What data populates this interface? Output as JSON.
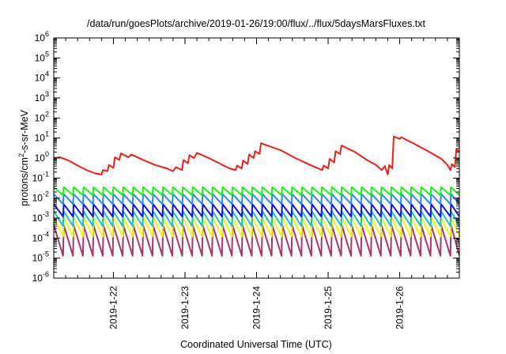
{
  "chart_data": {
    "type": "line",
    "title": "/data/run/goesPlots/archive/2019-01-26/19:00/flux/../flux/5daysMarsFluxes.txt",
    "xlabel": "Coordinated Universal Time (UTC)",
    "ylabel_parts": {
      "pre": "protons/cm",
      "sup": "2",
      "post": "-s-sr-MeV"
    },
    "x_range": [
      "2019-01-21T04:00",
      "2019-01-26T20:00"
    ],
    "x_ticks": [
      "2019-1-22",
      "2019-1-23",
      "2019-1-24",
      "2019-1-25",
      "2019-1-26"
    ],
    "y_scale": "log",
    "y_range": [
      1e-06,
      1000000.0
    ],
    "y_ticks": [
      {
        "base": "10",
        "exp": "-6"
      },
      {
        "base": "10",
        "exp": "-5"
      },
      {
        "base": "10",
        "exp": "-4"
      },
      {
        "base": "10",
        "exp": "-3"
      },
      {
        "base": "10",
        "exp": "-2"
      },
      {
        "base": "10",
        "exp": "-1"
      },
      {
        "base": "10",
        "exp": "0"
      },
      {
        "base": "10",
        "exp": "1"
      },
      {
        "base": "10",
        "exp": "2"
      },
      {
        "base": "10",
        "exp": "3"
      },
      {
        "base": "10",
        "exp": "4"
      },
      {
        "base": "10",
        "exp": "5"
      },
      {
        "base": "10",
        "exp": "6"
      }
    ],
    "grid": false,
    "legend": "none",
    "series": [
      {
        "color": "#e8201a",
        "kind": "trace",
        "points": [
          [
            "2019-01-21T04:00",
            1.0
          ],
          [
            "2019-01-21T06:00",
            1.1
          ],
          [
            "2019-01-21T09:00",
            0.75
          ],
          [
            "2019-01-21T12:00",
            0.42
          ],
          [
            "2019-01-21T15:00",
            0.25
          ],
          [
            "2019-01-21T18:00",
            0.17
          ],
          [
            "2019-01-21T20:00",
            0.15
          ],
          [
            "2019-01-21T20:30",
            0.25
          ],
          [
            "2019-01-21T22:00",
            0.22
          ],
          [
            "2019-01-21T22:30",
            0.45
          ],
          [
            "2019-01-22T00:00",
            0.32
          ],
          [
            "2019-01-22T00:30",
            1.1
          ],
          [
            "2019-01-22T02:00",
            0.8
          ],
          [
            "2019-01-22T02:30",
            1.7
          ],
          [
            "2019-01-22T05:00",
            1.1
          ],
          [
            "2019-01-22T06:00",
            1.5
          ],
          [
            "2019-01-22T10:00",
            0.8
          ],
          [
            "2019-01-22T14:00",
            0.45
          ],
          [
            "2019-01-22T18:00",
            0.3
          ],
          [
            "2019-01-22T20:00",
            0.22
          ],
          [
            "2019-01-22T21:00",
            0.35
          ],
          [
            "2019-01-22T23:00",
            0.25
          ],
          [
            "2019-01-22T23:30",
            0.8
          ],
          [
            "2019-01-23T01:00",
            0.55
          ],
          [
            "2019-01-23T01:30",
            1.4
          ],
          [
            "2019-01-23T03:00",
            1.0
          ],
          [
            "2019-01-23T04:00",
            1.8
          ],
          [
            "2019-01-23T08:00",
            1.0
          ],
          [
            "2019-01-23T12:00",
            0.5
          ],
          [
            "2019-01-23T15:00",
            0.3
          ],
          [
            "2019-01-23T17:00",
            0.25
          ],
          [
            "2019-01-23T17:30",
            0.42
          ],
          [
            "2019-01-23T19:00",
            0.3
          ],
          [
            "2019-01-23T19:30",
            0.75
          ],
          [
            "2019-01-23T21:00",
            0.5
          ],
          [
            "2019-01-23T21:30",
            1.5
          ],
          [
            "2019-01-23T23:00",
            1.0
          ],
          [
            "2019-01-23T23:30",
            2.2
          ],
          [
            "2019-01-24T01:00",
            1.6
          ],
          [
            "2019-01-24T01:30",
            5.5
          ],
          [
            "2019-01-24T03:00",
            4.5
          ],
          [
            "2019-01-24T08:00",
            2.5
          ],
          [
            "2019-01-24T13:00",
            1.0
          ],
          [
            "2019-01-24T18:00",
            0.45
          ],
          [
            "2019-01-24T22:00",
            0.25
          ],
          [
            "2019-01-24T22:30",
            0.42
          ],
          [
            "2019-01-25T00:00",
            0.3
          ],
          [
            "2019-01-25T00:30",
            0.9
          ],
          [
            "2019-01-25T02:00",
            0.6
          ],
          [
            "2019-01-25T02:30",
            2.2
          ],
          [
            "2019-01-25T04:00",
            1.6
          ],
          [
            "2019-01-25T04:30",
            4.2
          ],
          [
            "2019-01-25T09:00",
            2.0
          ],
          [
            "2019-01-25T13:00",
            0.8
          ],
          [
            "2019-01-25T16:00",
            0.45
          ],
          [
            "2019-01-25T18:00",
            0.25
          ],
          [
            "2019-01-25T19:00",
            0.4
          ],
          [
            "2019-01-25T20:00",
            0.15
          ],
          [
            "2019-01-25T20:30",
            0.45
          ],
          [
            "2019-01-25T21:30",
            0.3
          ],
          [
            "2019-01-25T22:00",
            12.0
          ],
          [
            "2019-01-26T00:00",
            9.0
          ],
          [
            "2019-01-26T00:30",
            11.0
          ],
          [
            "2019-01-26T05:00",
            5.0
          ],
          [
            "2019-01-26T10:00",
            2.0
          ],
          [
            "2019-01-26T14:00",
            0.9
          ],
          [
            "2019-01-26T16:00",
            0.45
          ],
          [
            "2019-01-26T17:00",
            0.25
          ],
          [
            "2019-01-26T17:30",
            0.5
          ],
          [
            "2019-01-26T18:30",
            0.35
          ],
          [
            "2019-01-26T19:00",
            2.8
          ],
          [
            "2019-01-26T20:00",
            2.0
          ]
        ]
      },
      {
        "color": "#19f019",
        "kind": "sawtooth",
        "x_start": "2019-01-21T04:00",
        "x_end": "2019-01-26T20:00",
        "period_hours": 3.33,
        "peak": 0.035,
        "trough": 0.014
      },
      {
        "color": "#2a86e8",
        "kind": "sawtooth",
        "x_start": "2019-01-21T04:00",
        "x_end": "2019-01-26T20:00",
        "period_hours": 3.33,
        "peak": 0.016,
        "trough": 0.005
      },
      {
        "color": "#0e14d6",
        "kind": "sawtooth",
        "x_start": "2019-01-21T04:00",
        "x_end": "2019-01-26T20:00",
        "period_hours": 3.33,
        "peak": 0.005,
        "trough": 0.0012
      },
      {
        "color": "#1fc0b0",
        "kind": "sawtooth",
        "x_start": "2019-01-21T04:00",
        "x_end": "2019-01-26T20:00",
        "period_hours": 3.33,
        "peak": 0.0022,
        "trough": 0.0004
      },
      {
        "color": "#f2f21a",
        "kind": "sawtooth",
        "x_start": "2019-01-21T04:00",
        "x_end": "2019-01-26T20:00",
        "period_hours": 3.33,
        "peak": 0.0011,
        "trough": 0.00012
      },
      {
        "color": "#a3396a",
        "kind": "sawtooth",
        "x_start": "2019-01-21T04:00",
        "x_end": "2019-01-26T20:00",
        "period_hours": 3.33,
        "peak": 0.00045,
        "trough": 1.3e-05
      }
    ]
  }
}
